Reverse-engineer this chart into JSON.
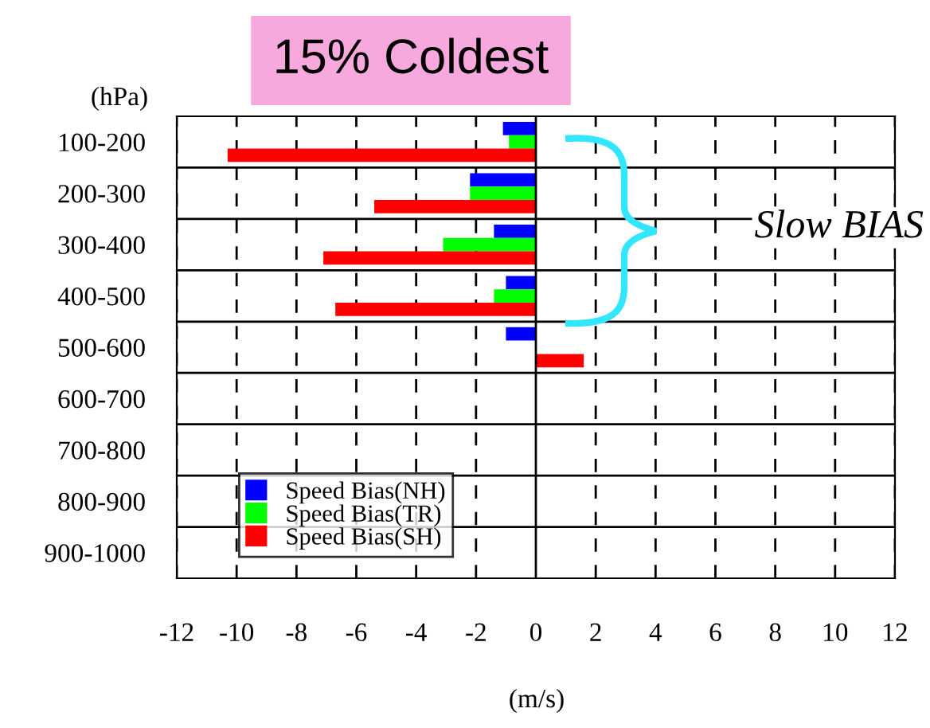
{
  "chart_data": {
    "type": "bar",
    "orientation": "horizontal",
    "title": "15% Coldest",
    "ylabel": "(hPa)",
    "xlabel": "(m/s)",
    "categories": [
      "100-200",
      "200-300",
      "300-400",
      "400-500",
      "500-600",
      "600-700",
      "700-800",
      "800-900",
      "900-1000"
    ],
    "series": [
      {
        "name": "Speed Bias(NH)",
        "color": "#0000ff",
        "values": [
          -1.1,
          -2.2,
          -1.4,
          -1.0,
          -1.0,
          null,
          null,
          null,
          null
        ]
      },
      {
        "name": "Speed Bias(TR)",
        "color": "#00ff00",
        "values": [
          -0.9,
          -2.2,
          -3.1,
          -1.4,
          null,
          null,
          null,
          null,
          null
        ]
      },
      {
        "name": "Speed Bias(SH)",
        "color": "#ff0000",
        "values": [
          -10.3,
          -5.4,
          -7.1,
          -6.7,
          1.6,
          null,
          null,
          null,
          null
        ]
      }
    ],
    "xlim": [
      -12,
      12
    ],
    "xticks": [
      -12,
      -10,
      -8,
      -6,
      -4,
      -2,
      0,
      2,
      4,
      6,
      8,
      10,
      12
    ],
    "annotations": [
      "Slow BIAS"
    ],
    "grid": true,
    "legend": "bottom left"
  }
}
